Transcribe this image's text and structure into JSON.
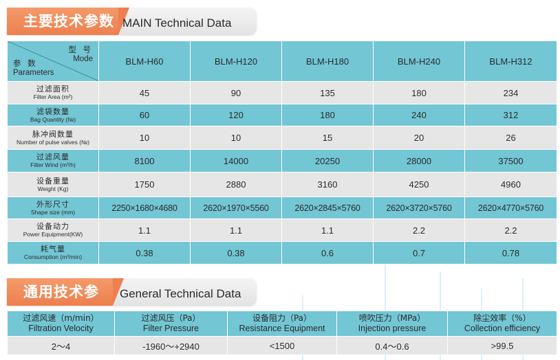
{
  "main_banner": {
    "cn": "主要技术参数",
    "en": "MAIN Technical Data"
  },
  "main_table": {
    "corner": {
      "model_cn": "型 号",
      "model_en": "Mode",
      "param_cn": "参 数",
      "param_en": "Parameters"
    },
    "models": [
      "BLM-H60",
      "BLM-H120",
      "BLM-H180",
      "BLM-H240",
      "BLM-H312"
    ],
    "rows": [
      {
        "cn": "过滤面积",
        "en": "Filter Area (m²)",
        "values": [
          "45",
          "90",
          "135",
          "180",
          "234"
        ]
      },
      {
        "cn": "滤袋数量",
        "en": "Bag Quantity (№)",
        "values": [
          "60",
          "120",
          "180",
          "240",
          "312"
        ]
      },
      {
        "cn": "脉冲阀数量",
        "en": "Number of pulse valves (№)",
        "values": [
          "10",
          "10",
          "15",
          "20",
          "26"
        ]
      },
      {
        "cn": "过滤风量",
        "en": "Filter Wind (m³/h)",
        "values": [
          "8100",
          "14000",
          "20250",
          "28000",
          "37500"
        ]
      },
      {
        "cn": "设备重量",
        "en": "Weight (Kg)",
        "values": [
          "1750",
          "2880",
          "3160",
          "4250",
          "4960"
        ]
      },
      {
        "cn": "外形尺寸",
        "en": "Shape size (mm)",
        "values": [
          "2250×1680×4680",
          "2620×1970×5560",
          "2620×2845×5760",
          "2620×3720×5760",
          "2620×4770×5760"
        ]
      },
      {
        "cn": "设备动力",
        "en": "Power Equipment(KW)",
        "values": [
          "1.1",
          "1.1",
          "1.1",
          "2.2",
          "2.2"
        ]
      },
      {
        "cn": "耗气量",
        "en": "Consumption (m³/min)",
        "values": [
          "0.38",
          "0.38",
          "0.6",
          "0.7",
          "0.78"
        ]
      }
    ]
  },
  "general_banner": {
    "cn": "通用技术参数",
    "en": "General  Technical  Data"
  },
  "general_table": {
    "headers": [
      {
        "cn": "过滤风速（m/min）",
        "en": "Filtration Velocity"
      },
      {
        "cn": "过滤风压（Pa）",
        "en": "Filter Pressure"
      },
      {
        "cn": "设备阻力（Pa）",
        "en": "Resistance Equipment"
      },
      {
        "cn": "喷吹压力（MPa）",
        "en": "Injection pressure"
      },
      {
        "cn": "除尘效率（%）",
        "en": "Collection efficiency"
      }
    ],
    "values": [
      "2～4",
      "-1960～+2940",
      "<1500",
      "0.4～0.6",
      ">99.5"
    ]
  },
  "colors": {
    "banner_orange": "#ee7f4e",
    "cell_blue": "#73c6d4",
    "cell_gray": "#e6e6e6"
  }
}
